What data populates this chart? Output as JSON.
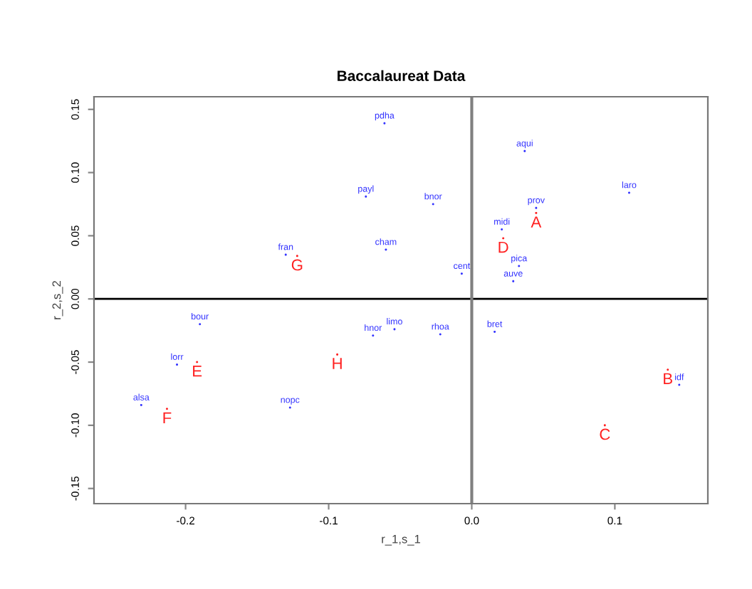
{
  "chart_data": {
    "type": "scatter",
    "title": "Baccalaureat Data",
    "xlabel": "r_1,s_1",
    "ylabel": "r_2,s_2",
    "xlim": [
      -0.264,
      0.165
    ],
    "ylim": [
      -0.162,
      0.16
    ],
    "xticks": [
      -0.2,
      -0.1,
      {
        "value": 0,
        "label": "0.0"
      },
      0.1
    ],
    "yticks": [
      -0.15,
      {
        "value": -0.1,
        "label": "-0.10"
      },
      -0.05,
      {
        "value": 0,
        "label": "0.00"
      },
      0.05,
      {
        "value": 0.1,
        "label": "0.10"
      },
      0.15
    ],
    "marker": "none",
    "grid": false,
    "legend": false,
    "ref_lines": [
      {
        "axis": "y",
        "value": 0,
        "color": "#000000"
      },
      {
        "axis": "x",
        "value": 0,
        "color": "#808080"
      }
    ],
    "series": [
      {
        "color": "#3333ff",
        "x": [
          -0.061,
          0.037,
          -0.074,
          -0.027,
          0.11,
          0.045,
          0.021,
          -0.13,
          -0.06,
          -0.007,
          0.033,
          0.029,
          -0.19,
          -0.054,
          -0.069,
          -0.022,
          0.016,
          -0.206,
          -0.231,
          -0.127,
          0.145
        ],
        "values": [
          0.139,
          0.117,
          0.081,
          0.075,
          0.084,
          0.072,
          0.055,
          0.035,
          0.039,
          0.02,
          0.026,
          0.014,
          -0.02,
          -0.024,
          -0.029,
          -0.028,
          -0.026,
          -0.052,
          -0.084,
          -0.086,
          -0.068
        ],
        "value_labels": [
          "pdha",
          "aqui",
          "payl",
          "bnor",
          "laro",
          "prov",
          "midi",
          "fran",
          "cham",
          "cent",
          "pica",
          "auve",
          "bour",
          "limo",
          "hnor",
          "rhoa",
          "bret",
          "lorr",
          "alsa",
          "nopc",
          "idf"
        ]
      },
      {
        "color": "#ff2020",
        "x": [
          0.045,
          0.137,
          0.093,
          0.022,
          -0.192,
          -0.213,
          -0.122,
          -0.094
        ],
        "values": [
          0.068,
          -0.056,
          -0.1,
          0.048,
          -0.05,
          -0.087,
          0.034,
          -0.044
        ],
        "value_labels": [
          "A",
          "B",
          "C",
          "D",
          "E",
          "F",
          "G",
          "H"
        ]
      }
    ]
  }
}
